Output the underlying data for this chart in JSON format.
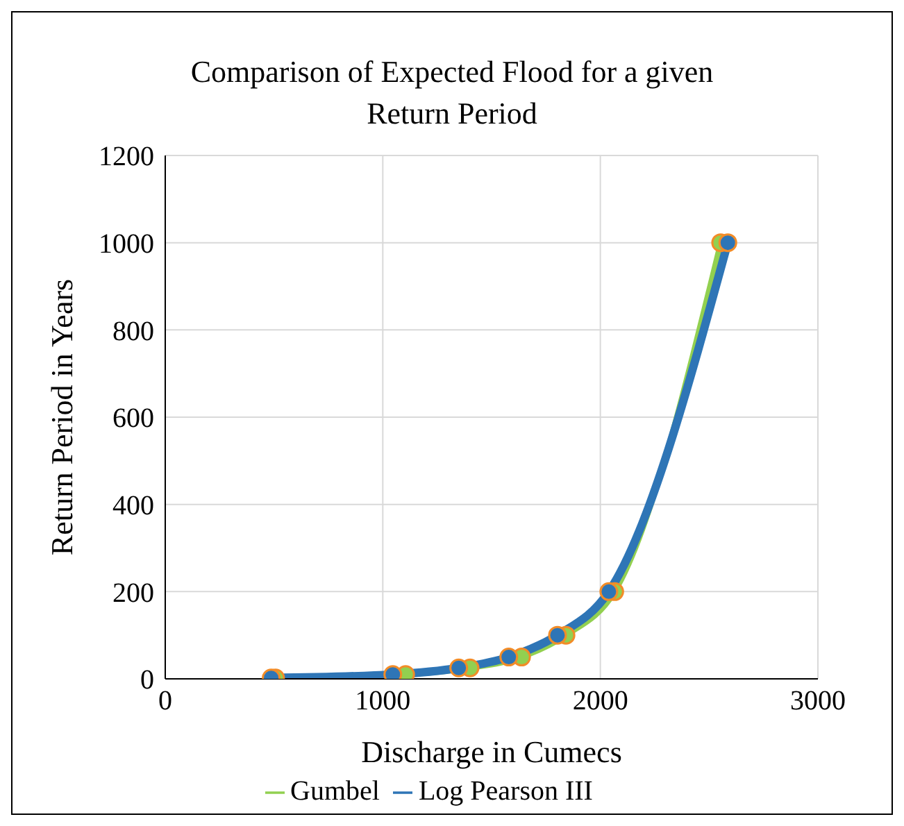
{
  "chart_data": {
    "type": "line",
    "title": "Comparison of Expected Flood for a given Return Period",
    "xlabel": "Discharge in Cumecs",
    "ylabel": "Return Period in Years",
    "series": [
      {
        "name": "Gumbel",
        "color": "#92d050",
        "x": [
          507,
          1105,
          1401,
          1638,
          1842,
          2066,
          2553
        ],
        "values": [
          2,
          10,
          25,
          50,
          100,
          200,
          1000
        ]
      },
      {
        "name": "Log Pearson III",
        "color": "#2e75b6",
        "x": [
          487,
          1046,
          1349,
          1579,
          1803,
          2039,
          2586
        ],
        "values": [
          2,
          10,
          25,
          50,
          100,
          200,
          1000
        ]
      }
    ],
    "xlim": [
      0,
      3000
    ],
    "xticks": [
      0,
      1000,
      2000,
      3000
    ],
    "ylim": [
      0,
      1200
    ],
    "yticks": [
      0,
      200,
      400,
      600,
      800,
      1000,
      1200
    ],
    "grid": true,
    "legend": "bottom",
    "marker": "circle",
    "line_style": "solid"
  }
}
